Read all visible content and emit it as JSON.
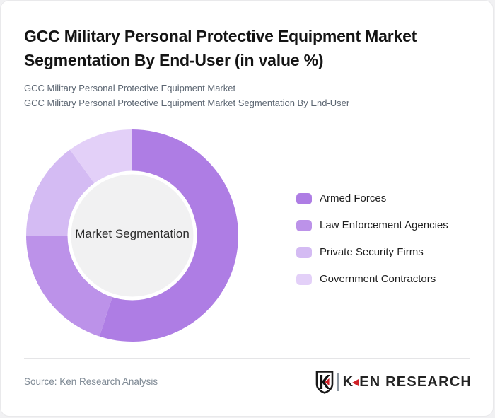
{
  "header": {
    "title": "GCC Military Personal Protective Equipment Market Segmentation By End-User (in value %)",
    "subtitle_line1": "GCC Military Personal Protective Equipment Market",
    "subtitle_line2": "GCC Military Personal Protective Equipment Market Segmentation By End-User"
  },
  "chart_data": {
    "type": "pie",
    "variant": "donut",
    "title": "GCC Military Personal Protective Equipment Market Segmentation By End-User (in value %)",
    "center_label": "Market Segmentation",
    "categories": [
      "Armed Forces",
      "Law Enforcement Agencies",
      "Private Security Firms",
      "Government Contractors"
    ],
    "values": [
      55,
      20,
      15,
      10
    ],
    "unit": "%",
    "colors": [
      "#ae7de4",
      "#bc92e9",
      "#d4bbf3",
      "#e3d0f8"
    ],
    "start_angle_deg": 0,
    "direction": "clockwise",
    "inner_radius_ratio": 0.59,
    "inner_circle_color": "#f1f1f2",
    "legend_position": "right"
  },
  "footer": {
    "source": "Source: Ken Research Analysis",
    "logo": {
      "brand_k": "K",
      "brand_rest": "EN RESEARCH",
      "accent_color": "#cf2127"
    }
  }
}
